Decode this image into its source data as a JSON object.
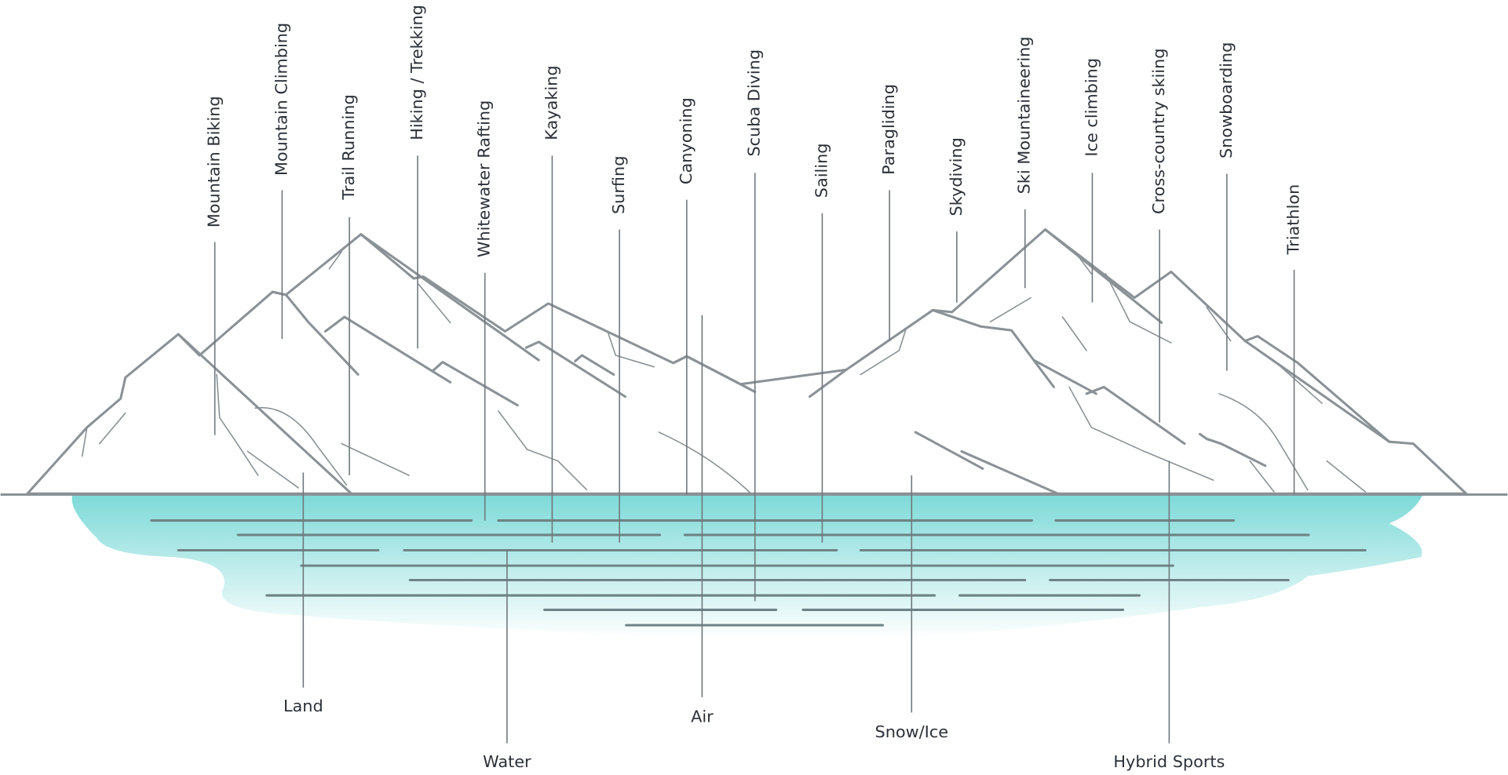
{
  "activities": [
    "Mountain Biking",
    "Mountain Climbing",
    "Trail Running",
    "Hiking / Trekking",
    "Whitewater Rafting",
    "Kayaking",
    "Surfing",
    "Canyoning",
    "Scuba Diving",
    "Sailing",
    "Paragliding",
    "Skydiving",
    "Ski Mountaineering",
    "Ice climbing",
    "Cross-country skiing",
    "Snowboarding",
    "Triathlon"
  ],
  "categories": [
    "Land",
    "Water",
    "Air",
    "Snow/Ice",
    "Hybrid Sports"
  ]
}
